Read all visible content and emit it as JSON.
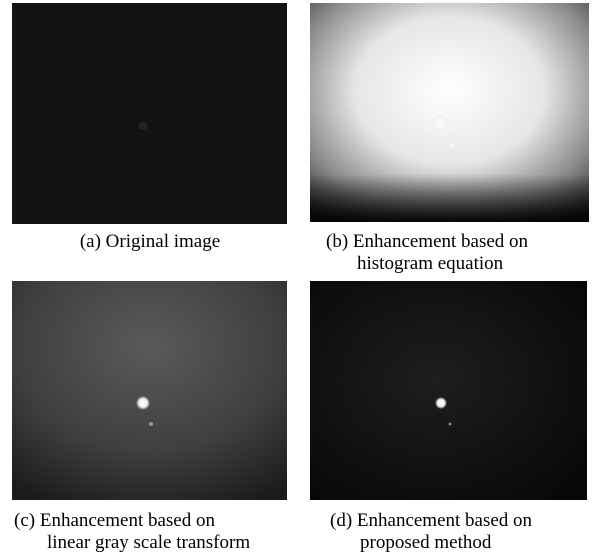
{
  "panels": [
    {
      "caption": [
        "(a) Original image"
      ]
    },
    {
      "caption": [
        "(b) Enhancement based on",
        "histogram equation"
      ]
    },
    {
      "caption": [
        "(c) Enhancement based on",
        "linear gray scale transform"
      ]
    },
    {
      "caption": [
        "(d) Enhancement based on",
        "proposed method"
      ]
    }
  ]
}
